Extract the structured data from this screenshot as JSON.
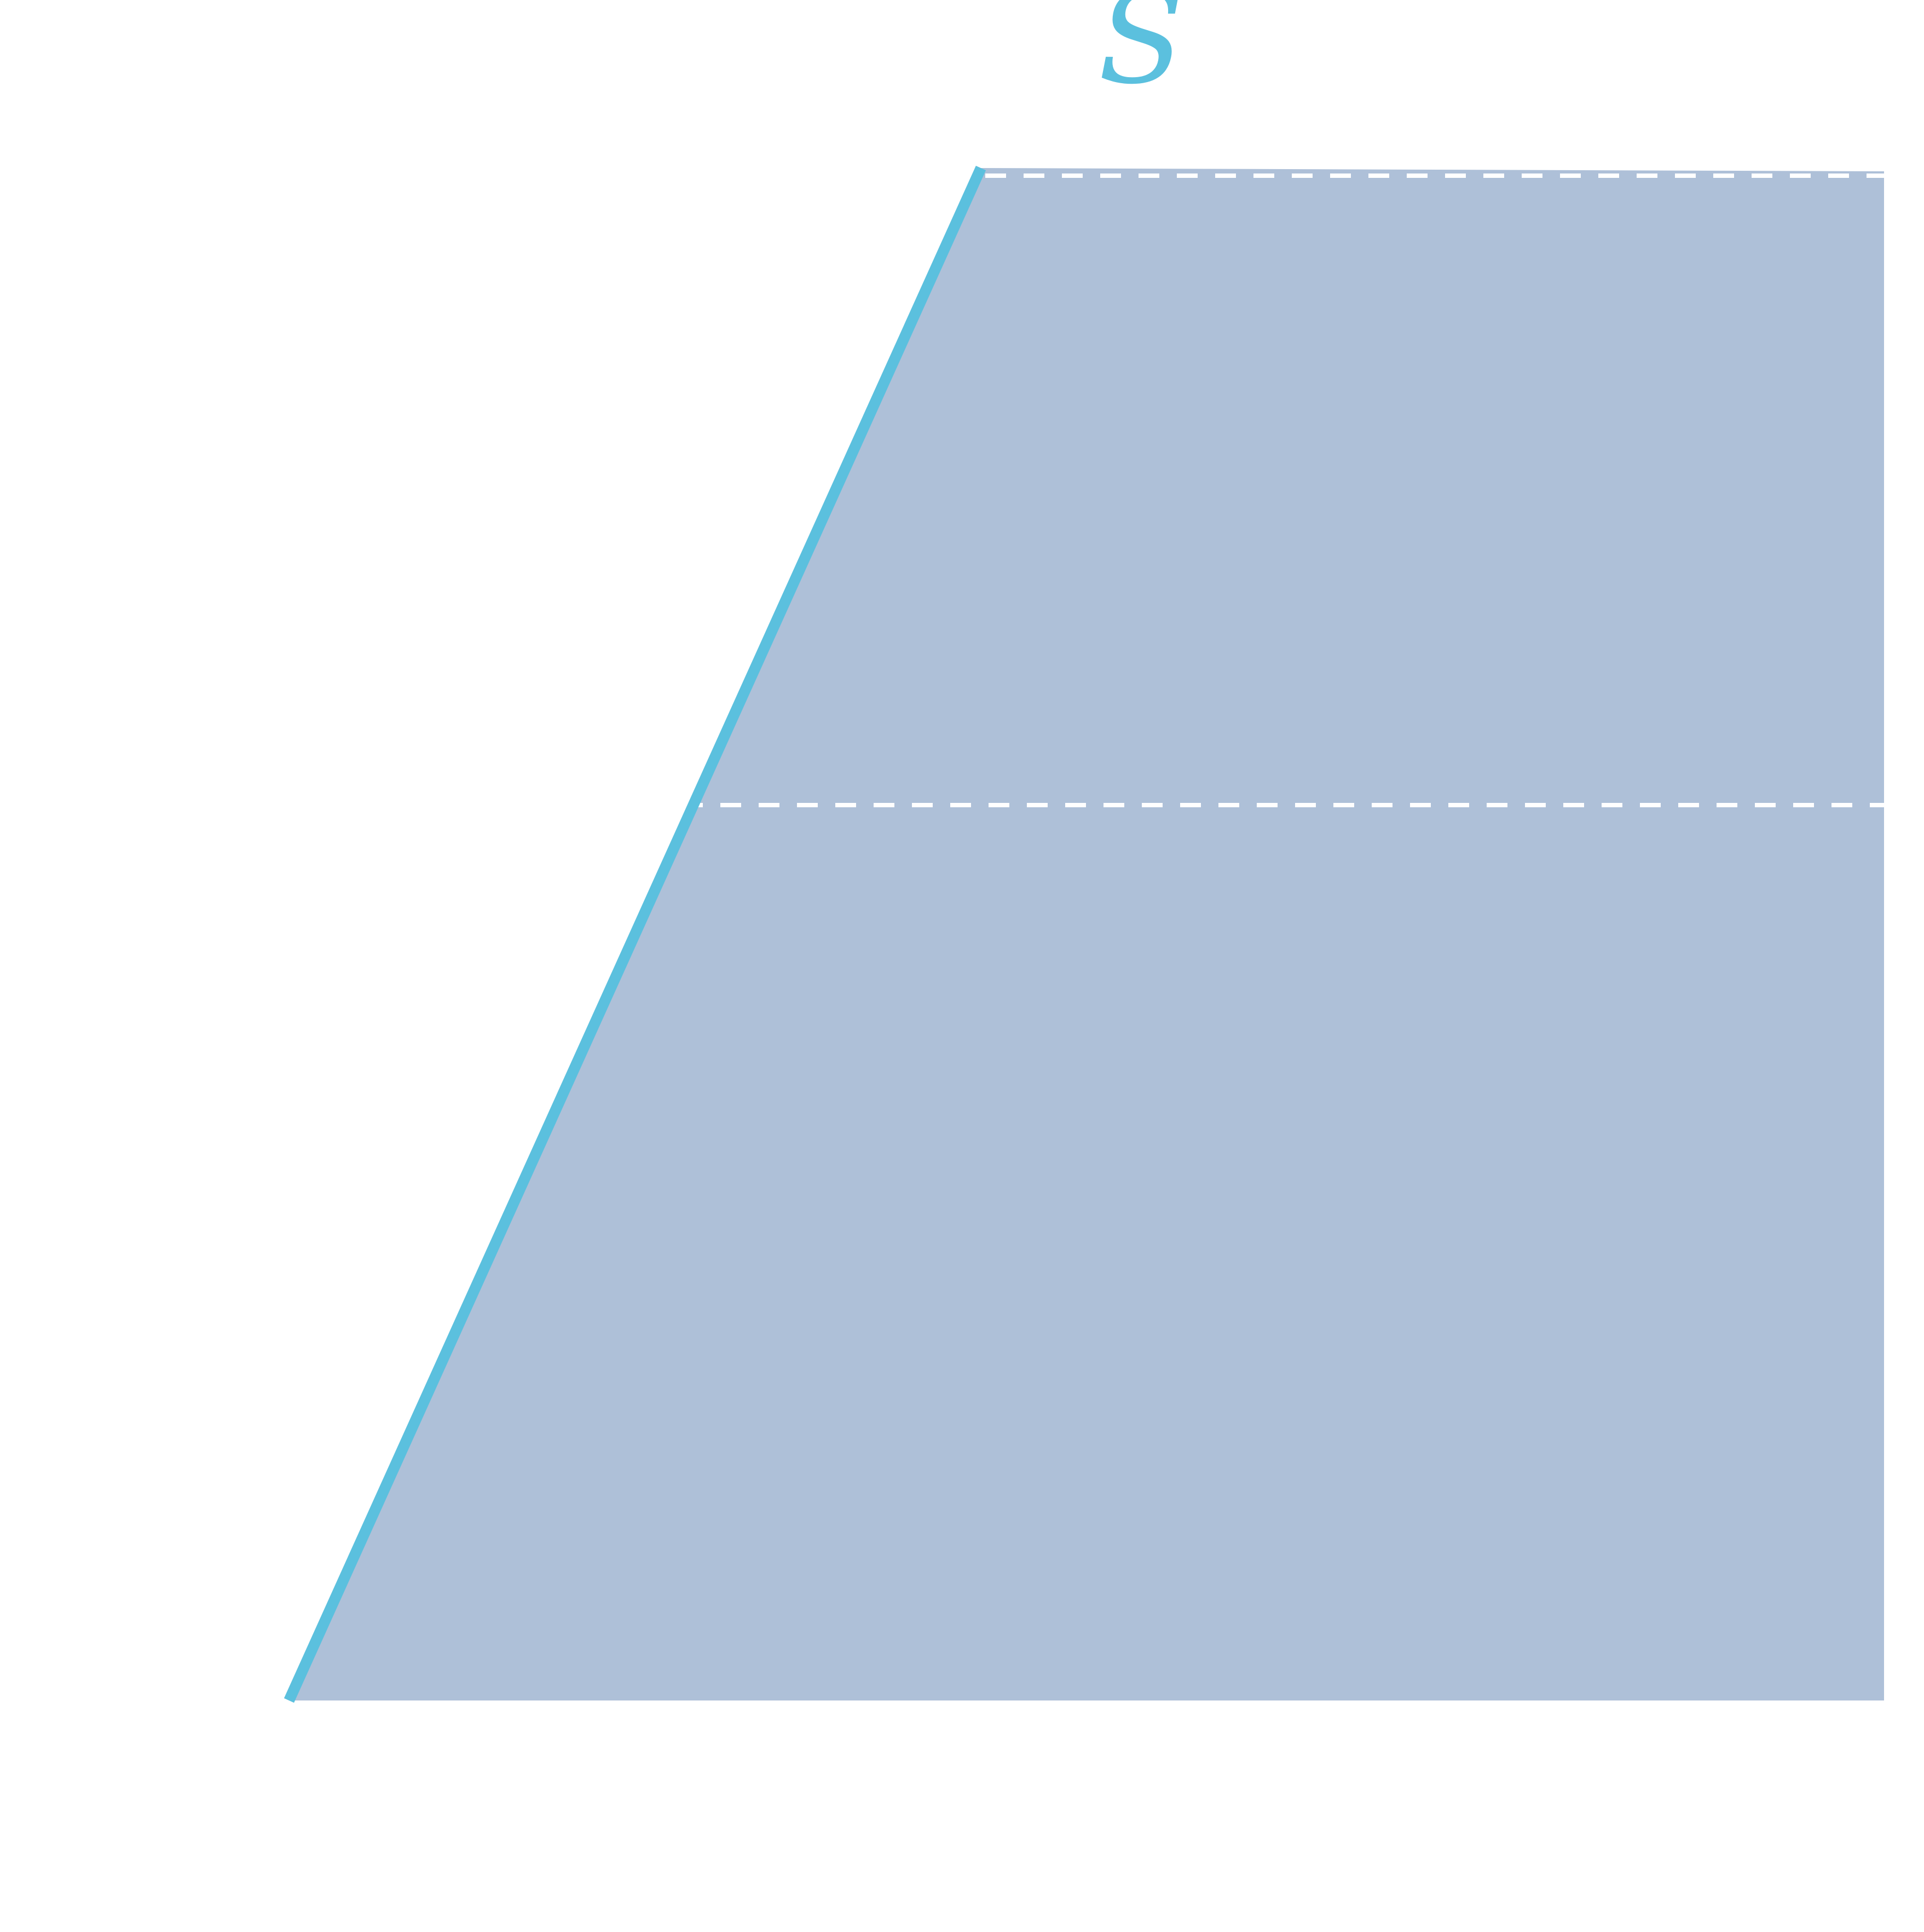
{
  "diagram": {
    "curve_label": "S",
    "colors": {
      "background": "#ffffff",
      "region_fill": "#aec0d8",
      "curve": "#5bc0de",
      "dashed_lines": "#ffffff",
      "label": "#5bc0de"
    }
  }
}
